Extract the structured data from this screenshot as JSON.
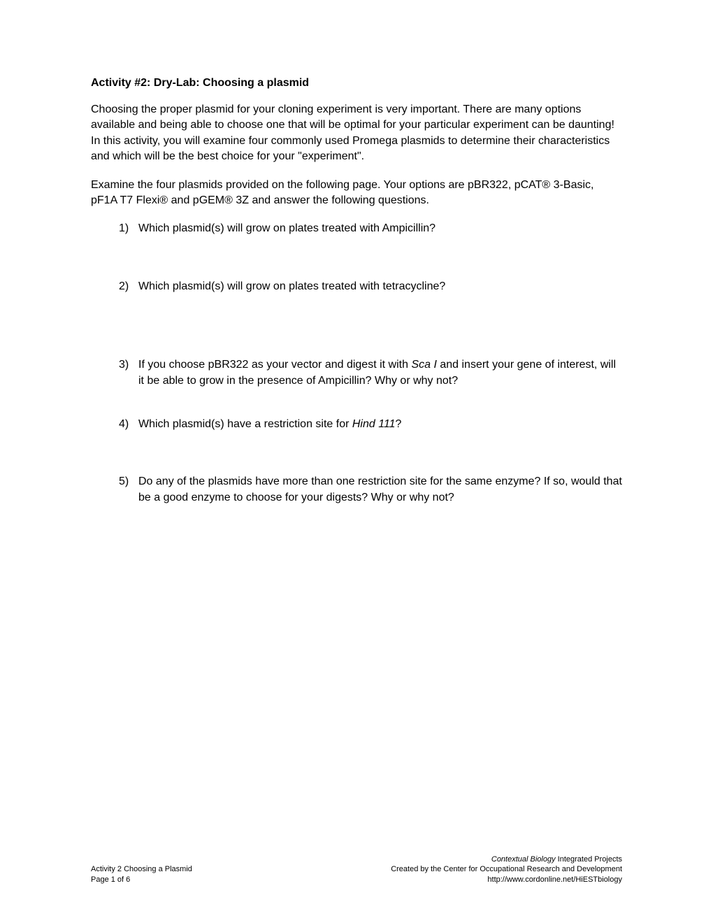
{
  "title": "Activity #2: Dry-Lab: Choosing a plasmid",
  "intro1": "Choosing the proper plasmid for your cloning experiment is very important. There are many options available and being able to choose one that will be optimal for your particular experiment can be daunting! In this activity, you will examine four commonly used Promega plasmids to determine their characteristics and which will be the best choice for your \"experiment\".",
  "intro2": "Examine the four plasmids provided on the following page. Your options are pBR322, pCAT® 3-Basic, pF1A T7 Flexi® and pGEM® 3Z and answer the following questions.",
  "questions": [
    {
      "num": "1)",
      "text": "Which plasmid(s) will grow on plates treated with Ampicillin?"
    },
    {
      "num": "2)",
      "text": "Which plasmid(s) will grow on plates treated with tetracycline?"
    },
    {
      "num": "3)",
      "text_before": "If you choose pBR322 as your vector and digest it with ",
      "italic": "Sca I",
      "text_after": " and insert your gene of interest, will it be able to grow in the presence of Ampicillin? Why or why not?"
    },
    {
      "num": "4)",
      "text_before": "Which plasmid(s) have a restriction site for ",
      "italic": "Hind 111",
      "text_after": "?"
    },
    {
      "num": "5)",
      "text": "Do any of the plasmids have more than one restriction site for the same enzyme? If so, would that be a good enzyme to choose for your digests? Why or why not?"
    }
  ],
  "footer": {
    "left_line1": "Activity 2 Choosing a Plasmid",
    "left_line2": "Page 1 of 6",
    "right_line1_italic": "Contextual Biology",
    "right_line1_rest": " Integrated Projects",
    "right_line2": "Created by the Center for Occupational Research and Development",
    "right_line3": "http://www.cordonline.net/HiESTbiology"
  }
}
